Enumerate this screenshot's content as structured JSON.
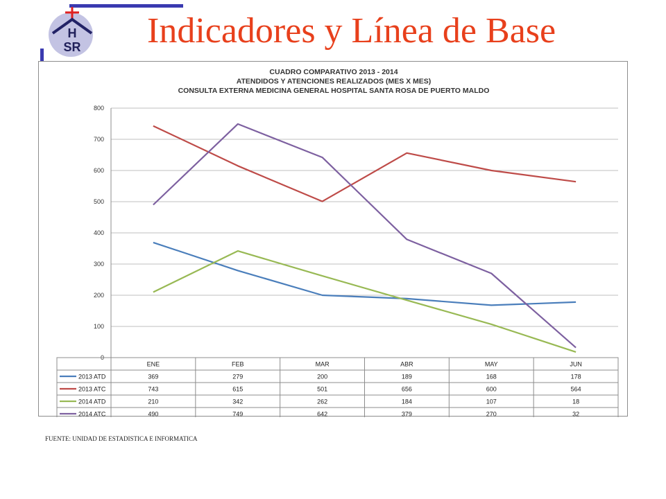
{
  "slide": {
    "title": "Indicadores y Línea de Base",
    "source": "FUENTE: UNIDAD DE ESTADISTICA E INFORMATICA",
    "logo_text": "HSR"
  },
  "chart_data": {
    "type": "line",
    "title": [
      "CUADRO COMPARATIVO 2013 - 2014",
      "ATENDIDOS Y ATENCIONES  REALIZADOS (MES X MES)",
      "CONSULTA EXTERNA MEDICINA GENERAL HOSPITAL SANTA ROSA DE PUERTO MALDO"
    ],
    "categories": [
      "ENE",
      "FEB",
      "MAR",
      "ABR",
      "MAY",
      "JUN"
    ],
    "ylim": [
      0,
      800
    ],
    "yticks": [
      0,
      100,
      200,
      300,
      400,
      500,
      600,
      700,
      800
    ],
    "grid": true,
    "legend": "data-table",
    "series": [
      {
        "name": "2013 ATD",
        "color": "#4a7ebb",
        "values": [
          369,
          279,
          200,
          189,
          168,
          178
        ]
      },
      {
        "name": "2013 ATC",
        "color": "#be4b48",
        "values": [
          743,
          615,
          501,
          656,
          600,
          564
        ]
      },
      {
        "name": "2014 ATD",
        "color": "#98b954",
        "values": [
          210,
          342,
          262,
          184,
          107,
          18
        ]
      },
      {
        "name": "2014 ATC",
        "color": "#7d60a0",
        "values": [
          490,
          749,
          642,
          379,
          270,
          32
        ]
      }
    ]
  }
}
